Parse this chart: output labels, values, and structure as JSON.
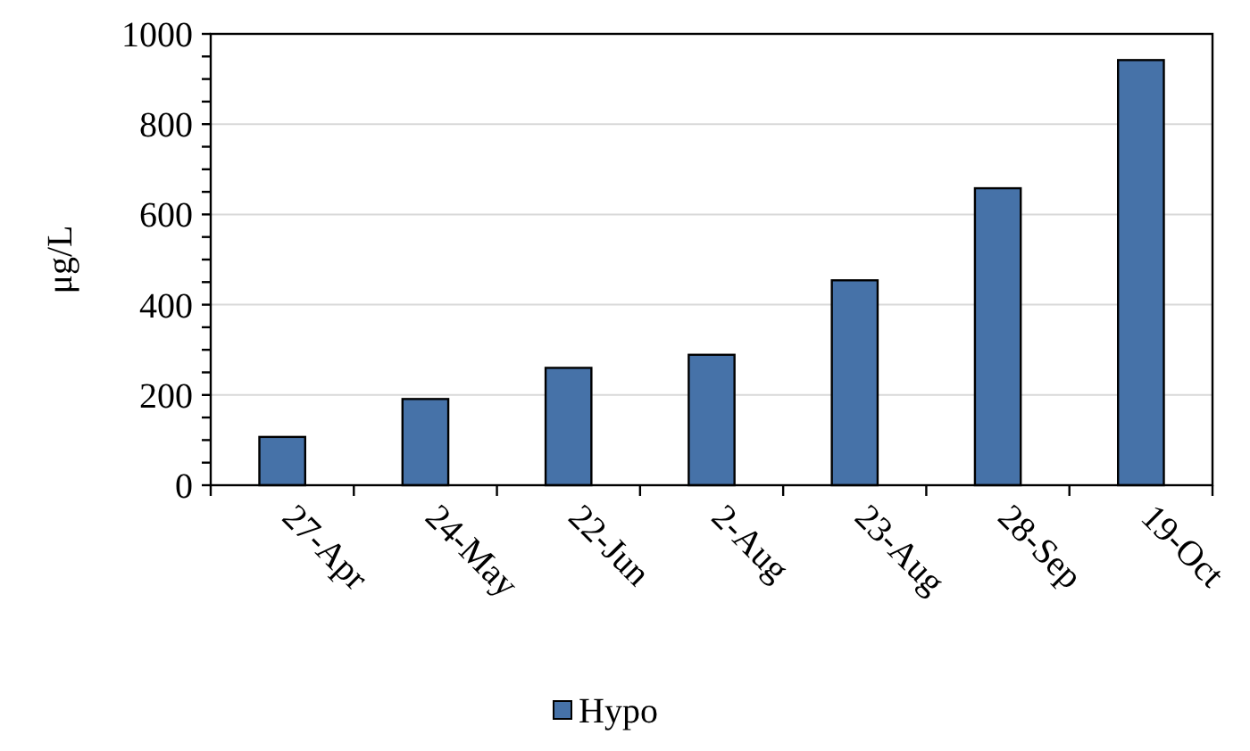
{
  "chart_data": {
    "type": "bar",
    "ylabel": "μg/L",
    "categories": [
      "27-Apr",
      "24-May",
      "22-Jun",
      "2-Aug",
      "23-Aug",
      "28-Sep",
      "19-Oct"
    ],
    "series": [
      {
        "name": "Hypo",
        "color": "#4672a8",
        "values": [
          107,
          191,
          260,
          289,
          454,
          658,
          942
        ]
      }
    ],
    "ylim": [
      0,
      1000
    ],
    "yticks": [
      0,
      200,
      400,
      600,
      800,
      1000
    ],
    "grid": "y",
    "legend": "bottom"
  }
}
